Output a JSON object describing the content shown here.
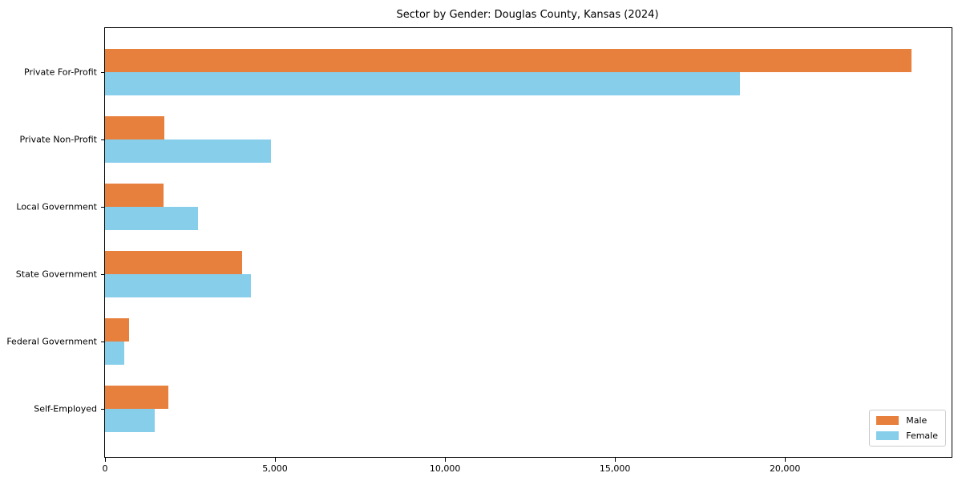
{
  "chart_data": {
    "type": "bar",
    "orientation": "horizontal",
    "title": "Sector by Gender: Douglas County, Kansas (2024)",
    "categories": [
      "Private For-Profit",
      "Private Non-Profit",
      "Local Government",
      "State Government",
      "Federal Government",
      "Self-Employed"
    ],
    "series": [
      {
        "name": "Male",
        "color": "#e8803d",
        "values": [
          23710,
          1750,
          1730,
          4030,
          700,
          1850
        ]
      },
      {
        "name": "Female",
        "color": "#87ceeb",
        "values": [
          18680,
          4870,
          2730,
          4300,
          570,
          1460
        ]
      }
    ],
    "xlabel": "",
    "ylabel": "",
    "xlim": [
      0,
      24900
    ],
    "xticks": [
      {
        "value": 0,
        "label": "0"
      },
      {
        "value": 5000,
        "label": "5,000"
      },
      {
        "value": 10000,
        "label": "10,000"
      },
      {
        "value": 15000,
        "label": "15,000"
      },
      {
        "value": 20000,
        "label": "20,000"
      }
    ],
    "grid": false,
    "legend": {
      "position": "lower right",
      "entries": [
        "Male",
        "Female"
      ]
    }
  }
}
